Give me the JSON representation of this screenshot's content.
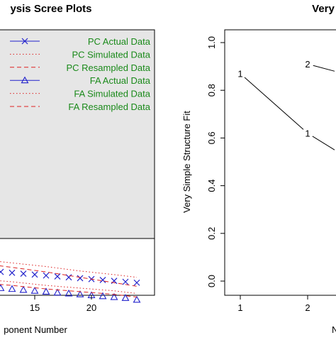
{
  "chart_data": [
    {
      "type": "line",
      "title": "ysis Scree Plots",
      "xlabel": "ponent Number",
      "ylabel": "",
      "x_ticks": [
        15,
        20
      ],
      "xlim": [
        10,
        25
      ],
      "ylim": [
        0,
        3.0
      ],
      "grid": false,
      "legend_position": "top-right",
      "legend": [
        {
          "label": "PC  Actual Data",
          "color": "#2222cc",
          "line": "solid",
          "marker": "x"
        },
        {
          "label": "PC  Simulated Data",
          "color": "#dd2222",
          "line": "dotted",
          "marker": ""
        },
        {
          "label": "PC  Resampled Data",
          "color": "#dd2222",
          "line": "dashed",
          "marker": ""
        },
        {
          "label": "FA  Actual Data",
          "color": "#2222cc",
          "line": "solid",
          "marker": "triangle"
        },
        {
          "label": "FA  Simulated Data",
          "color": "#dd2222",
          "line": "dotted",
          "marker": ""
        },
        {
          "label": "FA  Resampled Data",
          "color": "#dd2222",
          "line": "dashed",
          "marker": ""
        }
      ],
      "series": [
        {
          "x": [
            11,
            12,
            13,
            14,
            15,
            16,
            17,
            18,
            19,
            20,
            21,
            22,
            23,
            24
          ],
          "values": [
            0.28,
            0.26,
            0.25,
            0.24,
            0.23,
            0.22,
            0.21,
            0.2,
            0.19,
            0.18,
            0.17,
            0.16,
            0.15,
            0.14
          ],
          "color": "#2222cc",
          "line": "none",
          "marker": "x"
        },
        {
          "x": [
            11,
            12,
            13,
            14,
            15,
            16,
            17,
            18,
            19,
            20,
            21,
            22,
            23,
            24
          ],
          "values": [
            0.1,
            0.08,
            0.07,
            0.06,
            0.05,
            0.04,
            0.03,
            0.02,
            0.01,
            0.0,
            -0.01,
            -0.02,
            -0.03,
            -0.05
          ],
          "color": "#2222cc",
          "line": "none",
          "marker": "triangle"
        },
        {
          "x": [
            10,
            13,
            16,
            19,
            22,
            24
          ],
          "values": [
            0.4,
            0.36,
            0.32,
            0.27,
            0.23,
            0.2
          ],
          "color": "#dd2222",
          "line": "dotted"
        },
        {
          "x": [
            10,
            13,
            16,
            19,
            22,
            24
          ],
          "values": [
            0.36,
            0.31,
            0.26,
            0.2,
            0.14,
            0.1
          ],
          "color": "#dd2222",
          "line": "dashed"
        },
        {
          "x": [
            10,
            13,
            16,
            19,
            22,
            24
          ],
          "values": [
            0.18,
            0.15,
            0.11,
            0.08,
            0.05,
            0.02
          ],
          "color": "#dd2222",
          "line": "dotted"
        },
        {
          "x": [
            10,
            13,
            16,
            19,
            22,
            24
          ],
          "values": [
            0.14,
            0.11,
            0.07,
            0.04,
            0.01,
            -0.02
          ],
          "color": "#dd2222",
          "line": "dashed"
        }
      ]
    },
    {
      "type": "line",
      "title": "Very",
      "xlabel": "N",
      "ylabel": "Very Simple Structure Fit",
      "x_ticks": [
        1,
        2
      ],
      "y_ticks": [
        "0.0",
        "0.2",
        "0.4",
        "0.6",
        "0.8",
        "1.0"
      ],
      "xlim": [
        0.7,
        2.4
      ],
      "ylim": [
        0,
        1.0
      ],
      "grid": false,
      "series": [
        {
          "name": "1",
          "x": [
            1,
            2,
            2.4
          ],
          "values": [
            0.87,
            0.62,
            0.55
          ],
          "color": "#000000"
        },
        {
          "name": "2",
          "x": [
            2,
            2.4
          ],
          "values": [
            0.91,
            0.88
          ],
          "color": "#000000"
        }
      ]
    }
  ]
}
